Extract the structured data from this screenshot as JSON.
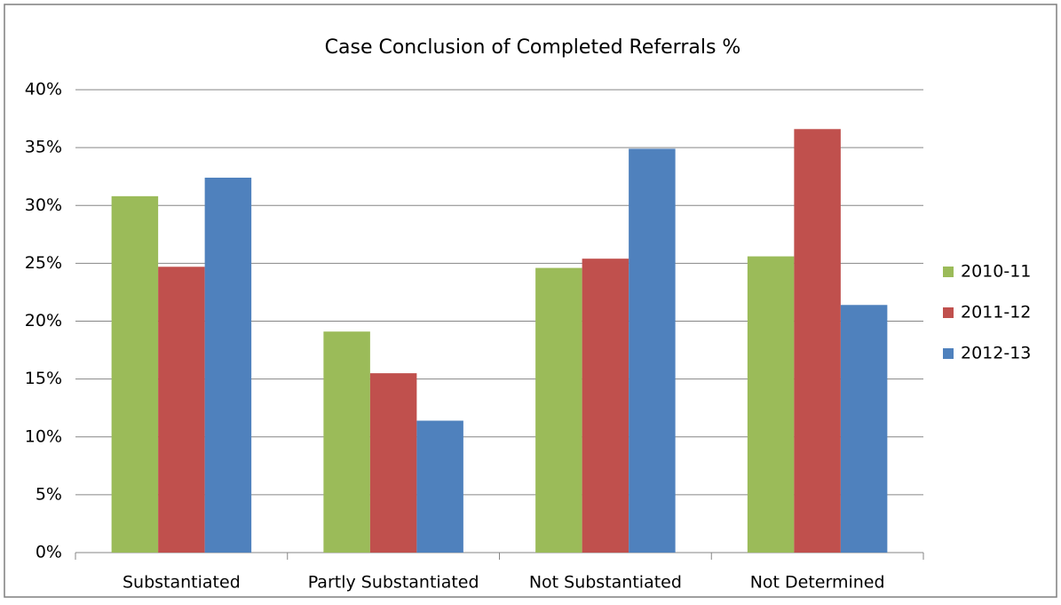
{
  "chart_data": {
    "type": "bar",
    "title": "Case Conclusion of Completed Referrals %",
    "categories": [
      "Substantiated",
      "Partly Substantiated",
      "Not Substantiated",
      "Not Determined"
    ],
    "series": [
      {
        "name": "2010-11",
        "color": "#9bbb59",
        "values": [
          30.8,
          19.1,
          24.6,
          25.6
        ]
      },
      {
        "name": "2011-12",
        "color": "#c0504d",
        "values": [
          24.7,
          15.5,
          25.4,
          36.6
        ]
      },
      {
        "name": "2012-13",
        "color": "#4f81bd",
        "values": [
          32.4,
          11.4,
          34.9,
          21.4
        ]
      }
    ],
    "ylim": [
      0,
      40
    ],
    "yticks": [
      {
        "value": 0,
        "label": "0%"
      },
      {
        "value": 5,
        "label": "5%"
      },
      {
        "value": 10,
        "label": "10%"
      },
      {
        "value": 15,
        "label": "15%"
      },
      {
        "value": 20,
        "label": "20%"
      },
      {
        "value": 25,
        "label": "25%"
      },
      {
        "value": 30,
        "label": "30%"
      },
      {
        "value": 35,
        "label": "35%"
      },
      {
        "value": 40,
        "label": "40%"
      }
    ],
    "grid": true,
    "legend": "right"
  }
}
